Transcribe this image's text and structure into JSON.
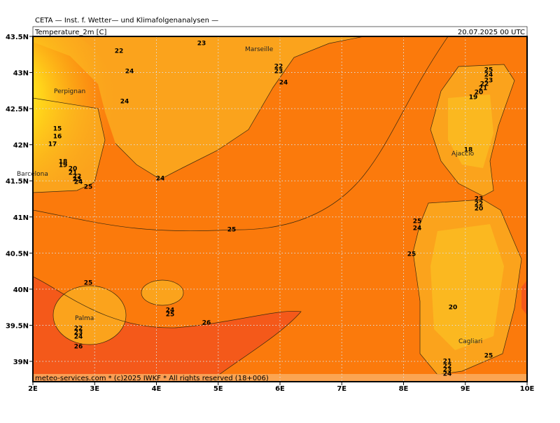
{
  "header": {
    "source": "CETA — Inst. f. Wetter— und Klimafolgenanalysen —",
    "parameter": "Temperature_2m [C]",
    "valid_time": "20.07.2025 00 UTC"
  },
  "map": {
    "lon_ticks": [
      "2E",
      "3E",
      "4E",
      "5E",
      "6E",
      "7E",
      "8E",
      "9E",
      "10E"
    ],
    "lat_ticks": [
      "43.5N",
      "43N",
      "42.5N",
      "42N",
      "41.5N",
      "41N",
      "40.5N",
      "40N",
      "39.5N",
      "39N"
    ],
    "places": [
      "Marseille",
      "Perpignan",
      "Barcelona",
      "Ajaccio",
      "Palma",
      "Cagliari"
    ],
    "contour_labels": [
      "22",
      "23",
      "24",
      "24",
      "22",
      "23",
      "24",
      "15",
      "16",
      "17",
      "18",
      "19",
      "20",
      "21",
      "22",
      "23",
      "24",
      "25",
      "24",
      "25",
      "25",
      "24",
      "23",
      "22",
      "21",
      "20",
      "19",
      "18",
      "23",
      "22",
      "20",
      "25",
      "24",
      "25",
      "25",
      "24",
      "25",
      "26",
      "22",
      "23",
      "24",
      "26",
      "20",
      "25",
      "21",
      "22",
      "23",
      "24"
    ],
    "footer": "meteo-services.com * (c)2025 IWKF * All rights reserved (18+006)"
  }
}
